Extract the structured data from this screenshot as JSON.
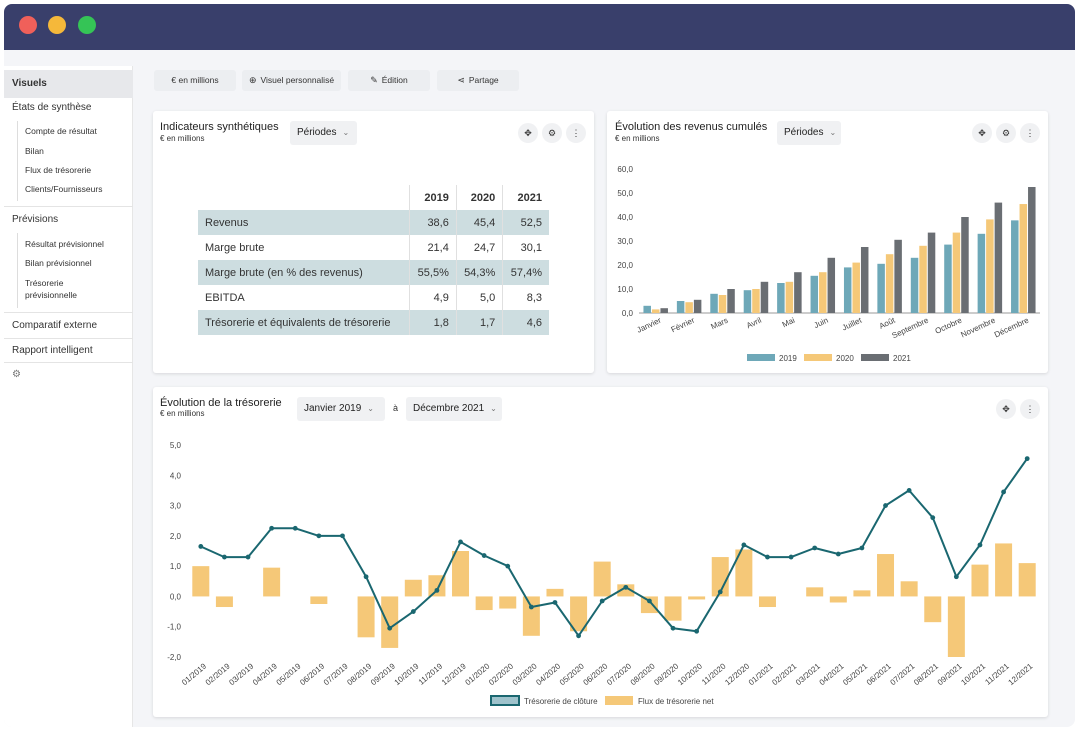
{
  "sidebar": {
    "active": "Visuels",
    "sections": [
      "États de synthèse",
      "Prévisions",
      "Comparatif externe",
      "Rapport intelligent"
    ],
    "synthese_items": [
      "Compte de résultat",
      "Bilan",
      "Flux de trésorerie",
      "Clients/Fournisseurs"
    ],
    "prevision_items": [
      "Résultat prévisionnel",
      "Bilan prévisionnel",
      "Trésorerie",
      "prévisionnelle"
    ],
    "settings_icon": "gear-icon"
  },
  "toolbar": {
    "units": "€ en millions",
    "custom": "Visuel personnalisé",
    "edit": "Édition",
    "share": "Partage"
  },
  "indicators": {
    "title": "Indicateurs synthétiques",
    "subtitle": "€ en millions",
    "period_label": "Périodes",
    "columns": [
      "2019",
      "2020",
      "2021"
    ],
    "rows": [
      {
        "label": "Revenus",
        "values": [
          "38,6",
          "45,4",
          "52,5"
        ]
      },
      {
        "label": "Marge brute",
        "values": [
          "21,4",
          "24,7",
          "30,1"
        ]
      },
      {
        "label": "Marge brute (en % des revenus)",
        "values": [
          "55,5%",
          "54,3%",
          "57,4%"
        ]
      },
      {
        "label": "EBITDA",
        "values": [
          "4,9",
          "5,0",
          "8,3"
        ]
      },
      {
        "label": "Trésorerie et équivalents de trésorerie",
        "values": [
          "1,8",
          "1,7",
          "4,6"
        ]
      }
    ]
  },
  "revenue_chart": {
    "title": "Évolution des revenus cumulés",
    "subtitle": "€ en millions",
    "period_label": "Périodes"
  },
  "cash_chart": {
    "title": "Évolution de la trésorerie",
    "subtitle": "€ en millions",
    "from_label": "Janvier 2019",
    "to_word": "à",
    "to_label": "Décembre 2021"
  },
  "chart_data": [
    {
      "type": "bar",
      "categories": [
        "Janvier",
        "Février",
        "Mars",
        "Avril",
        "Mai",
        "Juin",
        "Juillet",
        "Août",
        "Septembre",
        "Octobre",
        "Novembre",
        "Décembre"
      ],
      "series": [
        {
          "name": "2019",
          "color": "#6ea8b8",
          "values": [
            3.0,
            5.0,
            8.0,
            9.5,
            12.5,
            15.5,
            19.0,
            20.5,
            23.0,
            28.5,
            33.0,
            38.6
          ]
        },
        {
          "name": "2020",
          "color": "#f5c878",
          "values": [
            1.5,
            4.5,
            7.5,
            10.0,
            13.0,
            17.0,
            21.0,
            24.5,
            28.0,
            33.5,
            39.0,
            45.4
          ]
        },
        {
          "name": "2021",
          "color": "#6a6e73",
          "values": [
            2.0,
            5.5,
            10.0,
            13.0,
            17.0,
            23.0,
            27.5,
            30.5,
            33.5,
            40.0,
            46.0,
            52.5
          ]
        }
      ],
      "yticks": [
        "0,0",
        "10,0",
        "20,0",
        "30,0",
        "40,0",
        "50,0",
        "60,0"
      ],
      "ylim": [
        0,
        60
      ],
      "legend": "bottom"
    },
    {
      "type": "line",
      "categories": [
        "01/2019",
        "02/2019",
        "03/2019",
        "04/2019",
        "05/2019",
        "06/2019",
        "07/2019",
        "08/2019",
        "09/2019",
        "10/2019",
        "11/2019",
        "12/2019",
        "01/2020",
        "02/2020",
        "03/2020",
        "04/2020",
        "05/2020",
        "06/2020",
        "07/2020",
        "08/2020",
        "09/2020",
        "10/2020",
        "11/2020",
        "12/2020",
        "01/2021",
        "02/2021",
        "03/2021",
        "04/2021",
        "05/2021",
        "06/2021",
        "07/2021",
        "08/2021",
        "09/2021",
        "10/2021",
        "11/2021",
        "12/2021"
      ],
      "series": [
        {
          "name": "Trésorerie de clôture",
          "kind": "line",
          "color": "#1a6770",
          "values": [
            1.65,
            1.3,
            1.3,
            2.25,
            2.25,
            2.0,
            2.0,
            0.65,
            -1.05,
            -0.5,
            0.2,
            1.8,
            1.35,
            1.0,
            -0.35,
            -0.2,
            -1.3,
            -0.15,
            0.3,
            -0.15,
            -1.05,
            -1.15,
            0.15,
            1.7,
            1.3,
            1.3,
            1.6,
            1.4,
            1.6,
            3.0,
            3.5,
            2.6,
            0.65,
            1.7,
            3.45,
            4.55
          ]
        },
        {
          "name": "Flux de trésorerie net",
          "kind": "bar",
          "color": "#f5c878",
          "values": [
            1.0,
            -0.35,
            0.0,
            0.95,
            0.0,
            -0.25,
            0.0,
            -1.35,
            -1.7,
            0.55,
            0.7,
            1.5,
            -0.45,
            -0.4,
            -1.3,
            0.25,
            -1.15,
            1.15,
            0.4,
            -0.55,
            -0.8,
            -0.1,
            1.3,
            1.55,
            -0.35,
            0.0,
            0.3,
            -0.2,
            0.2,
            1.4,
            0.5,
            -0.85,
            -2.0,
            1.05,
            1.75,
            1.1
          ]
        }
      ],
      "yticks": [
        "-2,0",
        "-1,0",
        "0,0",
        "1,0",
        "2,0",
        "3,0",
        "4,0",
        "5,0"
      ],
      "ylim": [
        -2,
        5
      ],
      "legend": "bottom"
    }
  ]
}
